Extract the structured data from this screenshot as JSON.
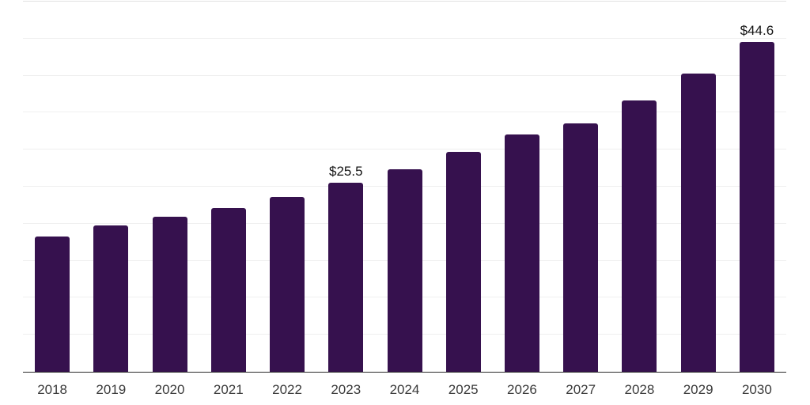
{
  "chart_data": {
    "type": "bar",
    "title": "",
    "xlabel": "",
    "ylabel": "",
    "categories": [
      "2018",
      "2019",
      "2020",
      "2021",
      "2022",
      "2023",
      "2024",
      "2025",
      "2026",
      "2027",
      "2028",
      "2029",
      "2030"
    ],
    "values": [
      18.3,
      19.8,
      20.9,
      22.1,
      23.6,
      25.5,
      27.4,
      29.7,
      32.0,
      33.6,
      36.7,
      40.3,
      44.6
    ],
    "data_labels": {
      "2023": "$25.5",
      "2030": "$44.6"
    },
    "ylim": [
      0,
      50
    ],
    "grid_step": 5,
    "grid_on": true,
    "legend_position": "none",
    "bar_color": "#36114e",
    "grid_color": "#efefef",
    "top_grid_color": "#e2e2e2",
    "axis_color": "#2b2b2b",
    "x_label_color": "#3a3a3a",
    "data_label_color": "#141414"
  }
}
